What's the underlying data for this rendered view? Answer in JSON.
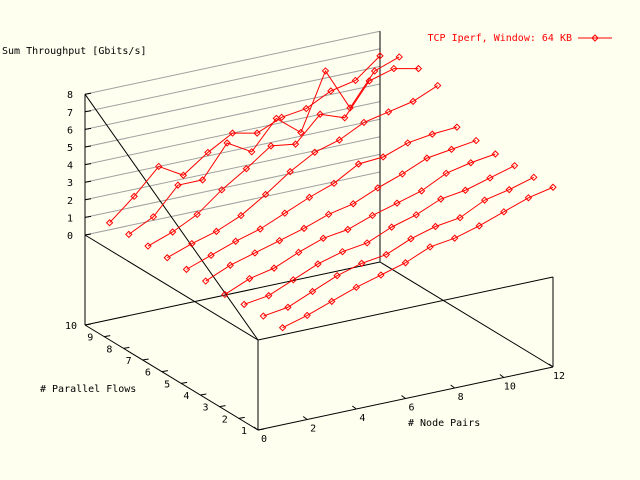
{
  "chart_data": {
    "type": "line",
    "title": "",
    "zlabel": "Sum Throughput [Gbits/s]",
    "xlabel": "# Node Pairs",
    "ylabel": "# Parallel Flows",
    "xlim": [
      0,
      12
    ],
    "ylim": [
      1,
      10
    ],
    "zlim": [
      0,
      8
    ],
    "xticks": [
      "0",
      "2",
      "4",
      "6",
      "8",
      "10",
      "12"
    ],
    "yticks": [
      "1",
      "2",
      "3",
      "4",
      "5",
      "6",
      "7",
      "8",
      "9",
      "10"
    ],
    "zticks": [
      "0",
      "1",
      "2",
      "3",
      "4",
      "5",
      "6",
      "7",
      "8"
    ],
    "legend": {
      "label": "TCP Iperf, Window: 64 KB",
      "position": "top-right"
    },
    "color": "#ff0000",
    "grid": true,
    "x": [
      1,
      2,
      3,
      4,
      5,
      6,
      7,
      8,
      9,
      10,
      11,
      12
    ],
    "series": [
      {
        "flows": 1,
        "values": [
          0.4,
          0.8,
          1.3,
          1.8,
          2.2,
          2.6,
          3.2,
          3.4,
          3.8,
          4.3,
          4.8,
          5.1
        ]
      },
      {
        "flows": 2,
        "values": [
          0.4,
          0.6,
          1.2,
          1.8,
          2.2,
          2.4,
          3.0,
          3.4,
          3.6,
          4.3,
          4.6,
          5.0
        ]
      },
      {
        "flows": 3,
        "values": [
          0.4,
          0.6,
          1.2,
          1.8,
          2.2,
          2.4,
          3.0,
          3.4,
          4.0,
          4.2,
          4.6,
          5.0
        ]
      },
      {
        "flows": 4,
        "values": [
          0.3,
          0.9,
          1.2,
          1.8,
          2.3,
          2.5,
          3.0,
          3.4,
          3.8,
          4.5,
          4.8,
          5.0
        ]
      },
      {
        "flows": 5,
        "values": [
          0.4,
          1.0,
          1.4,
          1.8,
          2.2,
          2.7,
          3.0,
          3.6,
          4.1,
          4.7,
          4.9,
          5.1
        ]
      },
      {
        "flows": 6,
        "values": [
          0.4,
          0.9,
          1.4,
          1.8,
          2.4,
          3.0,
          3.5,
          4.3,
          4.4,
          4.9,
          5.1,
          5.2
        ]
      },
      {
        "flows": 7,
        "values": [
          0.4,
          0.9,
          1.3,
          1.9,
          2.8,
          3.8,
          4.6,
          5.0,
          5.7,
          6.0,
          6.3,
          6.9
        ]
      },
      {
        "flows": 8,
        "values": [
          0.4,
          0.9,
          1.6,
          2.7,
          3.6,
          4.6,
          4.4,
          5.8,
          5.3,
          7.1,
          7.5,
          7.2
        ]
      },
      {
        "flows": 9,
        "values": [
          0.4,
          1.1,
          2.6,
          2.6,
          4.4,
          3.6,
          5.2,
          4.1,
          7.3,
          4.9,
          6.7,
          7.2
        ]
      },
      {
        "flows": 10,
        "values": [
          0.4,
          1.6,
          3.0,
          2.2,
          3.2,
          4.0,
          3.7,
          4.3,
          4.5,
          5.2,
          5.5,
          6.6
        ]
      }
    ]
  }
}
